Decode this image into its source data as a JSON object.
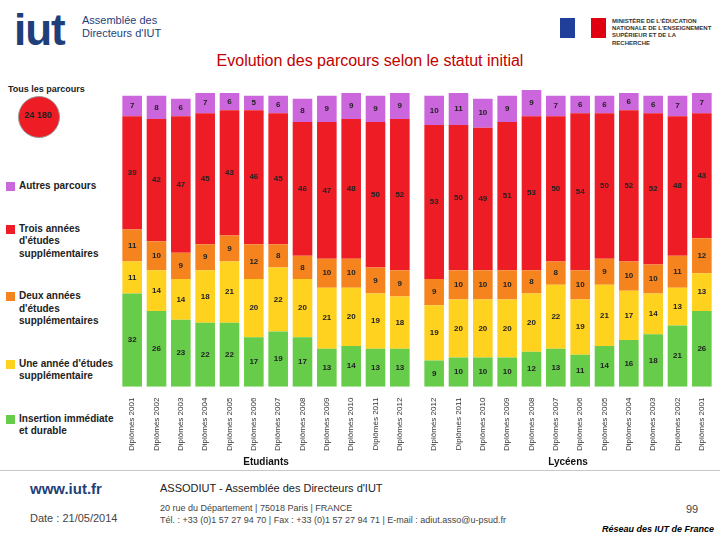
{
  "header": {
    "logo": "iut",
    "logo_text": "Assemblée des Directeurs d'IUT",
    "ministry": "MINISTÈRE DE L'ÉDUCATION NATIONALE DE L'ENSEIGNEMENT SUPÉRIEUR ET DE LA RECHERCHE"
  },
  "title": "Evolution des parcours selon le statut initial",
  "summary": {
    "title": "Tous les parcours",
    "total": "24 180"
  },
  "chart_data": [
    {
      "type": "bar",
      "stacked": true,
      "data_labels": true,
      "grid": false,
      "tick_labels": "x",
      "legend": "left",
      "xlabel": "Etudiants",
      "categories": [
        "Diplômés 2001",
        "Diplômés 2002",
        "Diplômés 2003",
        "Diplômés 2004",
        "Diplômés 2005",
        "Diplômés 2006",
        "Diplômés 2007",
        "Diplômés 2008",
        "Diplômés 2009",
        "Diplômés 2010",
        "Diplômés 2011",
        "Diplômés 2012"
      ],
      "ylim": [
        0,
        102
      ],
      "series": [
        {
          "name": "Insertion immédiate et durable",
          "color": "#66cc4a",
          "values": [
            32,
            26,
            23,
            22,
            22,
            17,
            19,
            17,
            13,
            14,
            13,
            13
          ]
        },
        {
          "name": "Une année d'études supplémentaire",
          "color": "#ffd21f",
          "values": [
            11,
            14,
            14,
            18,
            21,
            20,
            22,
            20,
            21,
            20,
            19,
            18
          ]
        },
        {
          "name": "Deux années d'études supplémentaires",
          "color": "#f5841f",
          "values": [
            11,
            10,
            9,
            9,
            9,
            12,
            8,
            8,
            10,
            10,
            9,
            9
          ]
        },
        {
          "name": "Trois années d'études supplémentaires",
          "color": "#ee1c25",
          "values": [
            39,
            42,
            47,
            45,
            43,
            46,
            45,
            46,
            47,
            48,
            50,
            52
          ]
        },
        {
          "name": "Autres parcours",
          "color": "#cc66dd",
          "values": [
            7,
            8,
            6,
            7,
            6,
            5,
            6,
            8,
            9,
            9,
            9,
            9
          ]
        }
      ]
    },
    {
      "type": "bar",
      "stacked": true,
      "data_labels": true,
      "grid": false,
      "tick_labels": "x",
      "xlabel": "Lycéens",
      "categories": [
        "Diplômés 2012",
        "Diplômés 2011",
        "Diplômés 2010",
        "Diplômés 2009",
        "Diplômés 2008",
        "Diplômés 2007",
        "Diplômés 2006",
        "Diplômés 2005",
        "Diplômés 2004",
        "Diplômés 2003",
        "Diplômés 2002",
        "Diplômés 2001"
      ],
      "ylim": [
        0,
        102
      ],
      "series": [
        {
          "name": "Insertion immédiate et durable",
          "color": "#66cc4a",
          "values": [
            9,
            10,
            10,
            10,
            12,
            13,
            11,
            14,
            16,
            18,
            21,
            26
          ]
        },
        {
          "name": "Une année d'études supplémentaire",
          "color": "#ffd21f",
          "values": [
            19,
            20,
            20,
            20,
            20,
            22,
            19,
            21,
            17,
            14,
            13,
            13
          ]
        },
        {
          "name": "Deux années d'études supplémentaires",
          "color": "#f5841f",
          "values": [
            9,
            10,
            10,
            10,
            8,
            8,
            10,
            9,
            10,
            10,
            11,
            12
          ]
        },
        {
          "name": "Trois années d'études supplémentaires",
          "color": "#ee1c25",
          "values": [
            53,
            50,
            49,
            51,
            53,
            50,
            54,
            50,
            52,
            52,
            48,
            43
          ]
        },
        {
          "name": "Autres parcours",
          "color": "#cc66dd",
          "values": [
            10,
            11,
            10,
            9,
            9,
            7,
            6,
            6,
            6,
            6,
            7,
            7
          ]
        }
      ]
    }
  ],
  "footer": {
    "website": "www.iut.fr",
    "date": "Date : 21/05/2014",
    "organisation": "ASSODIUT - Assemblée des Directeurs d'IUT",
    "address": "20 rue du Département | 75018 Paris | FRANCE",
    "contact": "Tél. : +33 (0)1 57 27 94 70 | Fax : +33 (0)1 57 27 94 71 | E-mail : adiut.asso@u-psud.fr",
    "page": "99",
    "network": "Réseau des IUT de France"
  }
}
